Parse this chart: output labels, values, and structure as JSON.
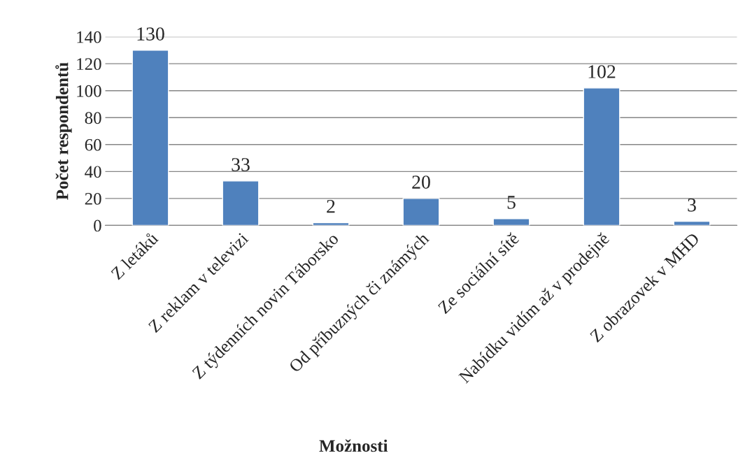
{
  "chart_data": {
    "type": "bar",
    "xlabel": "Možnosti",
    "ylabel": "Počet respondentů",
    "categories": [
      "Z letáků",
      "Z reklam v televizi",
      "Z týdenních novin Táborsko",
      "Od příbuzných či známých",
      "Ze sociální sítě",
      "Nabídku vidím až v prodejně",
      "Z obrazovek v MHD"
    ],
    "values": [
      130,
      33,
      2,
      20,
      5,
      102,
      3
    ],
    "color": "#4f81bd",
    "ylim": [
      0,
      140
    ],
    "yticks": [
      0,
      20,
      40,
      60,
      80,
      100,
      120,
      140
    ],
    "grid": "y",
    "data_labels": true
  }
}
